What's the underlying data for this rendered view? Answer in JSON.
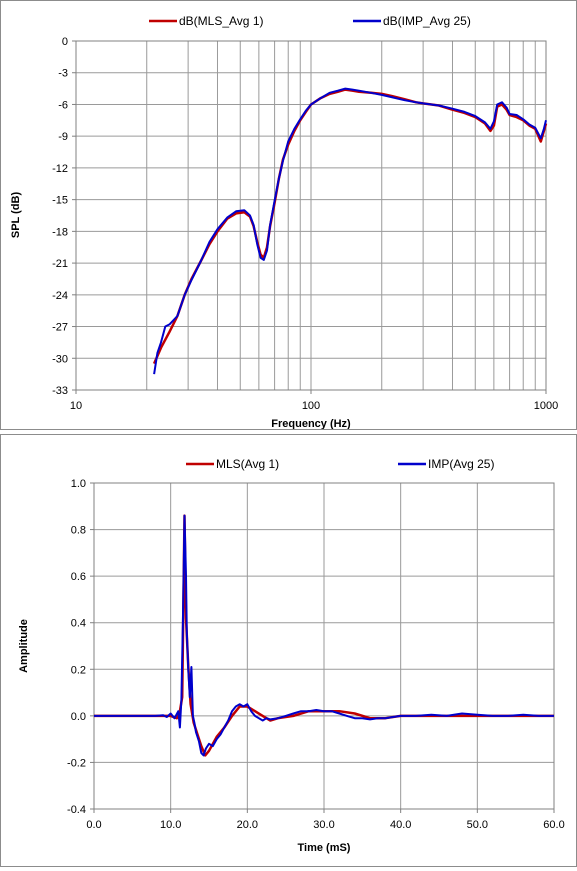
{
  "chart_data": [
    {
      "type": "line",
      "title": "",
      "xlabel": "Frequency (Hz)",
      "ylabel": "SPL (dB)",
      "x_scale": "log",
      "xlim": [
        10,
        1000
      ],
      "ylim": [
        -33,
        0
      ],
      "x_ticks": [
        {
          "value": 10,
          "label": "10"
        },
        {
          "value": 100,
          "label": "100"
        },
        {
          "value": 1000,
          "label": "1000"
        }
      ],
      "y_ticks": [
        {
          "value": 0,
          "label": "0"
        },
        {
          "value": -3,
          "label": "-3"
        },
        {
          "value": -6,
          "label": "-6"
        },
        {
          "value": -9,
          "label": "-9"
        },
        {
          "value": -12,
          "label": "-12"
        },
        {
          "value": -15,
          "label": "-15"
        },
        {
          "value": -18,
          "label": "-18"
        },
        {
          "value": -21,
          "label": "-21"
        },
        {
          "value": -24,
          "label": "-24"
        },
        {
          "value": -27,
          "label": "-27"
        },
        {
          "value": -30,
          "label": "-30"
        },
        {
          "value": -33,
          "label": "-33"
        }
      ],
      "grid": true,
      "legend_position": "top",
      "series": [
        {
          "name": "dB(MLS_Avg 1)",
          "color": "#c00000",
          "x": [
            21.5,
            23,
            25,
            27,
            29,
            31,
            34,
            37,
            40,
            44,
            48,
            52,
            55,
            57,
            59,
            61,
            63,
            65,
            67,
            70,
            73,
            76,
            80,
            85,
            90,
            95,
            100,
            110,
            120,
            130,
            140,
            150,
            160,
            180,
            200,
            220,
            250,
            280,
            300,
            350,
            400,
            450,
            500,
            550,
            580,
            600,
            620,
            650,
            680,
            700,
            750,
            800,
            850,
            900,
            950,
            980,
            1000
          ],
          "y": [
            -30.5,
            -29.0,
            -27.5,
            -26.0,
            -24.0,
            -22.5,
            -20.8,
            -19.2,
            -18.0,
            -16.8,
            -16.3,
            -16.2,
            -16.6,
            -17.5,
            -19.0,
            -20.2,
            -20.5,
            -19.5,
            -17.5,
            -15.3,
            -13.0,
            -11.2,
            -9.8,
            -8.5,
            -7.5,
            -6.7,
            -6.0,
            -5.4,
            -5.0,
            -4.8,
            -4.6,
            -4.7,
            -4.8,
            -4.9,
            -5.0,
            -5.2,
            -5.5,
            -5.8,
            -5.9,
            -6.1,
            -6.5,
            -6.8,
            -7.2,
            -7.8,
            -8.5,
            -8.0,
            -6.2,
            -6.0,
            -6.5,
            -7.0,
            -7.2,
            -7.5,
            -8.0,
            -8.3,
            -9.5,
            -8.5,
            -7.8
          ]
        },
        {
          "name": "dB(IMP_Avg 25)",
          "color": "#0000cc",
          "x": [
            21.5,
            22.2,
            23,
            24,
            25,
            27,
            29,
            31,
            34,
            37,
            40,
            44,
            48,
            52,
            55,
            57,
            59,
            61,
            63,
            65,
            67,
            70,
            73,
            76,
            80,
            85,
            90,
            95,
            100,
            110,
            120,
            130,
            140,
            150,
            160,
            180,
            200,
            220,
            250,
            280,
            300,
            350,
            400,
            450,
            500,
            550,
            580,
            600,
            620,
            650,
            680,
            700,
            750,
            800,
            850,
            900,
            950,
            980,
            1000
          ],
          "y": [
            -31.5,
            -29.5,
            -28.5,
            -27.0,
            -26.8,
            -26.0,
            -24.0,
            -22.6,
            -20.8,
            -19.0,
            -17.8,
            -16.7,
            -16.1,
            -16.0,
            -16.5,
            -17.4,
            -19.2,
            -20.5,
            -20.7,
            -19.8,
            -17.4,
            -15.1,
            -13.0,
            -11.3,
            -9.5,
            -8.3,
            -7.4,
            -6.6,
            -6.0,
            -5.4,
            -4.9,
            -4.7,
            -4.5,
            -4.6,
            -4.7,
            -4.9,
            -5.1,
            -5.3,
            -5.6,
            -5.8,
            -5.9,
            -6.1,
            -6.4,
            -6.7,
            -7.1,
            -7.7,
            -8.3,
            -7.6,
            -6.0,
            -5.8,
            -6.3,
            -6.9,
            -7.0,
            -7.4,
            -7.9,
            -8.2,
            -9.2,
            -8.3,
            -7.5
          ]
        }
      ]
    },
    {
      "type": "line",
      "title": "",
      "xlabel": "Time (mS)",
      "ylabel": "Amplitude",
      "xlim": [
        0,
        60
      ],
      "ylim": [
        -0.4,
        1.0
      ],
      "x_ticks": [
        {
          "value": 0,
          "label": "0.0"
        },
        {
          "value": 10,
          "label": "10.0"
        },
        {
          "value": 20,
          "label": "20.0"
        },
        {
          "value": 30,
          "label": "30.0"
        },
        {
          "value": 40,
          "label": "40.0"
        },
        {
          "value": 50,
          "label": "50.0"
        },
        {
          "value": 60,
          "label": "60.0"
        }
      ],
      "y_ticks": [
        {
          "value": 1.0,
          "label": "1.0"
        },
        {
          "value": 0.8,
          "label": "0.8"
        },
        {
          "value": 0.6,
          "label": "0.6"
        },
        {
          "value": 0.4,
          "label": "0.4"
        },
        {
          "value": 0.2,
          "label": "0.2"
        },
        {
          "value": 0.0,
          "label": "0.0"
        },
        {
          "value": -0.2,
          "label": "-0.2"
        },
        {
          "value": -0.4,
          "label": "-0.4"
        }
      ],
      "grid": true,
      "legend_position": "top",
      "series": [
        {
          "name": "MLS(Avg 1)",
          "color": "#c00000",
          "x": [
            0,
            8,
            10,
            10.8,
            11.2,
            11.5,
            11.8,
            12.0,
            12.3,
            12.6,
            13.0,
            13.5,
            14.0,
            14.5,
            15.0,
            16.0,
            17.0,
            18.0,
            19.0,
            20.0,
            21.0,
            22.0,
            23.0,
            24.0,
            26.0,
            28.0,
            30.0,
            32.0,
            34.0,
            36.0,
            38.0,
            40.0,
            45.0,
            50.0,
            55.0,
            60.0
          ],
          "y": [
            0,
            0,
            0,
            -0.01,
            0.02,
            0.08,
            0.86,
            0.42,
            0.21,
            0.05,
            -0.03,
            -0.08,
            -0.13,
            -0.17,
            -0.15,
            -0.09,
            -0.05,
            0.0,
            0.04,
            0.04,
            0.02,
            0.0,
            -0.02,
            -0.01,
            0.0,
            0.02,
            0.02,
            0.02,
            0.01,
            -0.01,
            -0.01,
            0.0,
            0.0,
            0.0,
            0.0,
            0.0
          ]
        },
        {
          "name": "IMP(Avg 25)",
          "color": "#0000cc",
          "x": [
            0,
            6,
            7,
            8,
            9,
            9.5,
            10.0,
            10.5,
            11.0,
            11.2,
            11.4,
            11.6,
            11.8,
            12.0,
            12.1,
            12.3,
            12.5,
            12.7,
            12.9,
            13.1,
            13.3,
            13.5,
            13.7,
            14.0,
            14.3,
            14.6,
            15.0,
            15.5,
            16.0,
            16.5,
            17.0,
            17.5,
            18.0,
            18.5,
            19.0,
            19.5,
            20.0,
            20.5,
            21.0,
            21.5,
            22.0,
            22.5,
            23.0,
            24.0,
            25.0,
            26.0,
            27.0,
            28.0,
            29.0,
            30.0,
            31.0,
            32.0,
            33.0,
            34.0,
            35.0,
            36.0,
            37.0,
            38.0,
            39.0,
            40.0,
            42.0,
            44.0,
            46.0,
            48.0,
            50.0,
            52.0,
            54.0,
            56.0,
            58.0,
            60.0
          ],
          "y": [
            0,
            0,
            0,
            0,
            0.003,
            -0.005,
            0.01,
            -0.01,
            0.02,
            -0.05,
            0.07,
            0.4,
            0.86,
            0.6,
            0.36,
            0.2,
            0.08,
            0.21,
            0.0,
            -0.03,
            -0.07,
            -0.09,
            -0.11,
            -0.16,
            -0.17,
            -0.14,
            -0.12,
            -0.13,
            -0.1,
            -0.08,
            -0.05,
            -0.02,
            0.02,
            0.04,
            0.05,
            0.04,
            0.05,
            0.02,
            0.0,
            -0.01,
            -0.02,
            -0.01,
            -0.015,
            -0.01,
            0.0,
            0.01,
            0.02,
            0.02,
            0.025,
            0.02,
            0.02,
            0.01,
            0.0,
            -0.01,
            -0.01,
            -0.015,
            -0.01,
            -0.01,
            -0.005,
            0.0,
            0.0,
            0.005,
            0.0,
            0.01,
            0.005,
            0.0,
            0.0,
            0.005,
            0.0,
            0.0
          ]
        }
      ]
    }
  ]
}
